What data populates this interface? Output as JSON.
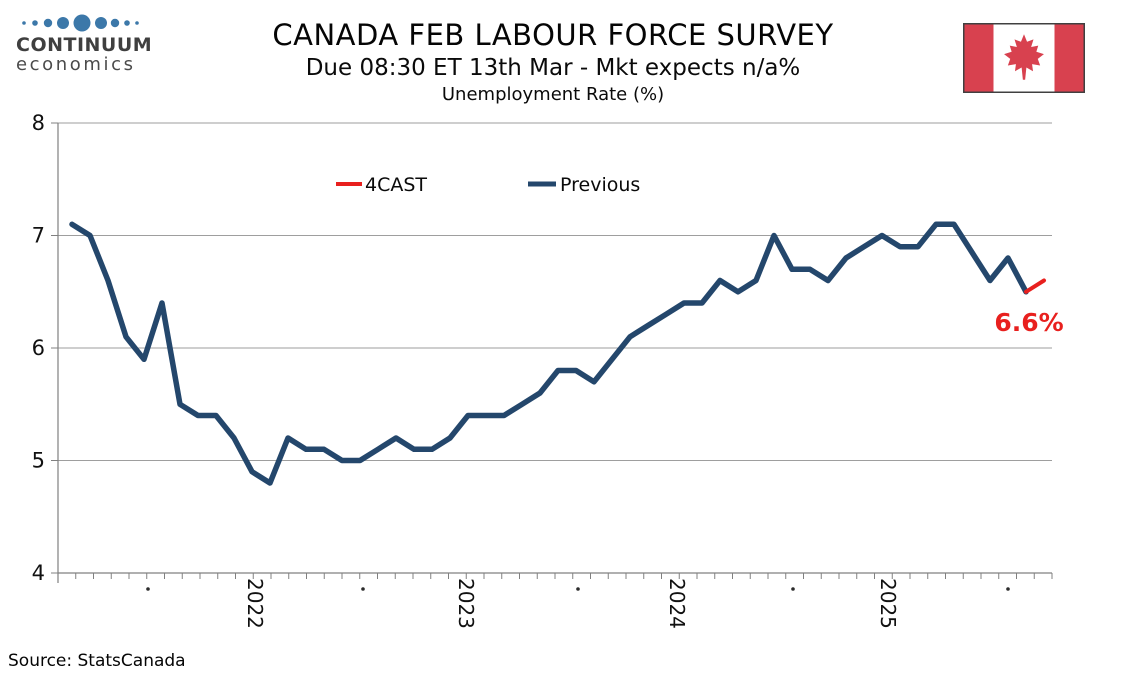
{
  "header": {
    "logo": {
      "line1": "CONTINUUM",
      "line2": "economics"
    },
    "title": "CANADA FEB LABOUR FORCE SURVEY",
    "subtitle": "Due 08:30 ET 13th Mar - Mkt expects n/a%",
    "chart_heading": "Unemployment Rate (%)"
  },
  "legend": [
    {
      "label": "4CAST",
      "color": "#E8201E"
    },
    {
      "label": "Previous",
      "color": "#24476C"
    }
  ],
  "annotation": {
    "forecast_label": "6.6%"
  },
  "footer": {
    "source": "Source: StatsCanada"
  },
  "colors": {
    "blue": "#24476C",
    "red": "#E8201E",
    "logo_blue": "#3C78A9",
    "flag_red": "#D8414F",
    "grid": "#9E9E9E",
    "axis": "#808080",
    "text": "#1A1A1A"
  },
  "chart_data": {
    "type": "line",
    "title": "Unemployment Rate (%)",
    "ylim": [
      4,
      8
    ],
    "yticks": [
      8,
      7,
      6,
      5,
      4
    ],
    "xticklabels": [
      "2022",
      "2023",
      "2024",
      "2025"
    ],
    "grid": "horizontal",
    "legend_position": "top-center",
    "series": [
      {
        "name": "Previous",
        "color": "#24476C",
        "values": [
          7.1,
          7.0,
          6.6,
          6.1,
          5.9,
          6.4,
          5.5,
          5.4,
          5.4,
          5.2,
          4.9,
          4.8,
          5.2,
          5.1,
          5.1,
          5.0,
          5.0,
          5.1,
          5.2,
          5.1,
          5.1,
          5.2,
          5.4,
          5.4,
          5.4,
          5.5,
          5.6,
          5.8,
          5.8,
          5.7,
          5.9,
          6.1,
          6.2,
          6.3,
          6.4,
          6.4,
          6.6,
          6.5,
          6.6,
          7.0,
          6.7,
          6.7,
          6.6,
          6.8,
          6.9,
          7.0,
          6.9,
          6.9,
          7.1,
          7.1,
          6.85,
          6.6,
          6.8,
          6.5
        ]
      },
      {
        "name": "4CAST",
        "color": "#E8201E",
        "values": [
          6.5,
          6.6
        ]
      }
    ],
    "forecast_value": 6.6
  }
}
